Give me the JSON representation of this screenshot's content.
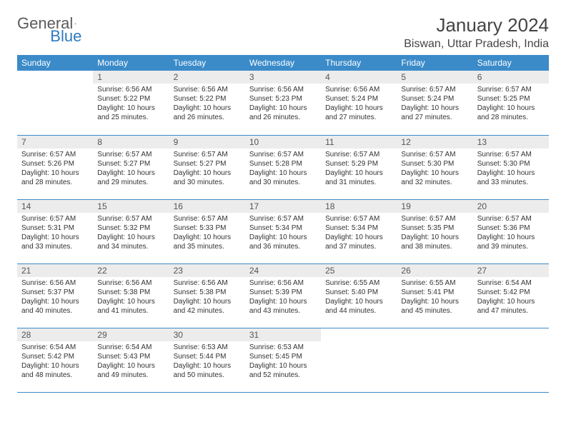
{
  "logo": {
    "text1": "General",
    "text2": "Blue"
  },
  "title": "January 2024",
  "location": "Biswan, Uttar Pradesh, India",
  "colors": {
    "header_bg": "#3b8bc9",
    "header_text": "#ffffff",
    "daynum_bg": "#ececec",
    "daynum_text": "#555555",
    "rule": "#3b8bc9",
    "logo_gray": "#5a5a5a",
    "logo_blue": "#2d7bc0"
  },
  "daynames": [
    "Sunday",
    "Monday",
    "Tuesday",
    "Wednesday",
    "Thursday",
    "Friday",
    "Saturday"
  ],
  "weeks": [
    [
      {
        "n": "",
        "sunrise": "",
        "sunset": "",
        "daylight": ""
      },
      {
        "n": "1",
        "sunrise": "6:56 AM",
        "sunset": "5:22 PM",
        "daylight": "10 hours and 25 minutes."
      },
      {
        "n": "2",
        "sunrise": "6:56 AM",
        "sunset": "5:22 PM",
        "daylight": "10 hours and 26 minutes."
      },
      {
        "n": "3",
        "sunrise": "6:56 AM",
        "sunset": "5:23 PM",
        "daylight": "10 hours and 26 minutes."
      },
      {
        "n": "4",
        "sunrise": "6:56 AM",
        "sunset": "5:24 PM",
        "daylight": "10 hours and 27 minutes."
      },
      {
        "n": "5",
        "sunrise": "6:57 AM",
        "sunset": "5:24 PM",
        "daylight": "10 hours and 27 minutes."
      },
      {
        "n": "6",
        "sunrise": "6:57 AM",
        "sunset": "5:25 PM",
        "daylight": "10 hours and 28 minutes."
      }
    ],
    [
      {
        "n": "7",
        "sunrise": "6:57 AM",
        "sunset": "5:26 PM",
        "daylight": "10 hours and 28 minutes."
      },
      {
        "n": "8",
        "sunrise": "6:57 AM",
        "sunset": "5:27 PM",
        "daylight": "10 hours and 29 minutes."
      },
      {
        "n": "9",
        "sunrise": "6:57 AM",
        "sunset": "5:27 PM",
        "daylight": "10 hours and 30 minutes."
      },
      {
        "n": "10",
        "sunrise": "6:57 AM",
        "sunset": "5:28 PM",
        "daylight": "10 hours and 30 minutes."
      },
      {
        "n": "11",
        "sunrise": "6:57 AM",
        "sunset": "5:29 PM",
        "daylight": "10 hours and 31 minutes."
      },
      {
        "n": "12",
        "sunrise": "6:57 AM",
        "sunset": "5:30 PM",
        "daylight": "10 hours and 32 minutes."
      },
      {
        "n": "13",
        "sunrise": "6:57 AM",
        "sunset": "5:30 PM",
        "daylight": "10 hours and 33 minutes."
      }
    ],
    [
      {
        "n": "14",
        "sunrise": "6:57 AM",
        "sunset": "5:31 PM",
        "daylight": "10 hours and 33 minutes."
      },
      {
        "n": "15",
        "sunrise": "6:57 AM",
        "sunset": "5:32 PM",
        "daylight": "10 hours and 34 minutes."
      },
      {
        "n": "16",
        "sunrise": "6:57 AM",
        "sunset": "5:33 PM",
        "daylight": "10 hours and 35 minutes."
      },
      {
        "n": "17",
        "sunrise": "6:57 AM",
        "sunset": "5:34 PM",
        "daylight": "10 hours and 36 minutes."
      },
      {
        "n": "18",
        "sunrise": "6:57 AM",
        "sunset": "5:34 PM",
        "daylight": "10 hours and 37 minutes."
      },
      {
        "n": "19",
        "sunrise": "6:57 AM",
        "sunset": "5:35 PM",
        "daylight": "10 hours and 38 minutes."
      },
      {
        "n": "20",
        "sunrise": "6:57 AM",
        "sunset": "5:36 PM",
        "daylight": "10 hours and 39 minutes."
      }
    ],
    [
      {
        "n": "21",
        "sunrise": "6:56 AM",
        "sunset": "5:37 PM",
        "daylight": "10 hours and 40 minutes."
      },
      {
        "n": "22",
        "sunrise": "6:56 AM",
        "sunset": "5:38 PM",
        "daylight": "10 hours and 41 minutes."
      },
      {
        "n": "23",
        "sunrise": "6:56 AM",
        "sunset": "5:38 PM",
        "daylight": "10 hours and 42 minutes."
      },
      {
        "n": "24",
        "sunrise": "6:56 AM",
        "sunset": "5:39 PM",
        "daylight": "10 hours and 43 minutes."
      },
      {
        "n": "25",
        "sunrise": "6:55 AM",
        "sunset": "5:40 PM",
        "daylight": "10 hours and 44 minutes."
      },
      {
        "n": "26",
        "sunrise": "6:55 AM",
        "sunset": "5:41 PM",
        "daylight": "10 hours and 45 minutes."
      },
      {
        "n": "27",
        "sunrise": "6:54 AM",
        "sunset": "5:42 PM",
        "daylight": "10 hours and 47 minutes."
      }
    ],
    [
      {
        "n": "28",
        "sunrise": "6:54 AM",
        "sunset": "5:42 PM",
        "daylight": "10 hours and 48 minutes."
      },
      {
        "n": "29",
        "sunrise": "6:54 AM",
        "sunset": "5:43 PM",
        "daylight": "10 hours and 49 minutes."
      },
      {
        "n": "30",
        "sunrise": "6:53 AM",
        "sunset": "5:44 PM",
        "daylight": "10 hours and 50 minutes."
      },
      {
        "n": "31",
        "sunrise": "6:53 AM",
        "sunset": "5:45 PM",
        "daylight": "10 hours and 52 minutes."
      },
      {
        "n": "",
        "sunrise": "",
        "sunset": "",
        "daylight": ""
      },
      {
        "n": "",
        "sunrise": "",
        "sunset": "",
        "daylight": ""
      },
      {
        "n": "",
        "sunrise": "",
        "sunset": "",
        "daylight": ""
      }
    ]
  ],
  "labels": {
    "sunrise": "Sunrise: ",
    "sunset": "Sunset: ",
    "daylight": "Daylight: "
  }
}
